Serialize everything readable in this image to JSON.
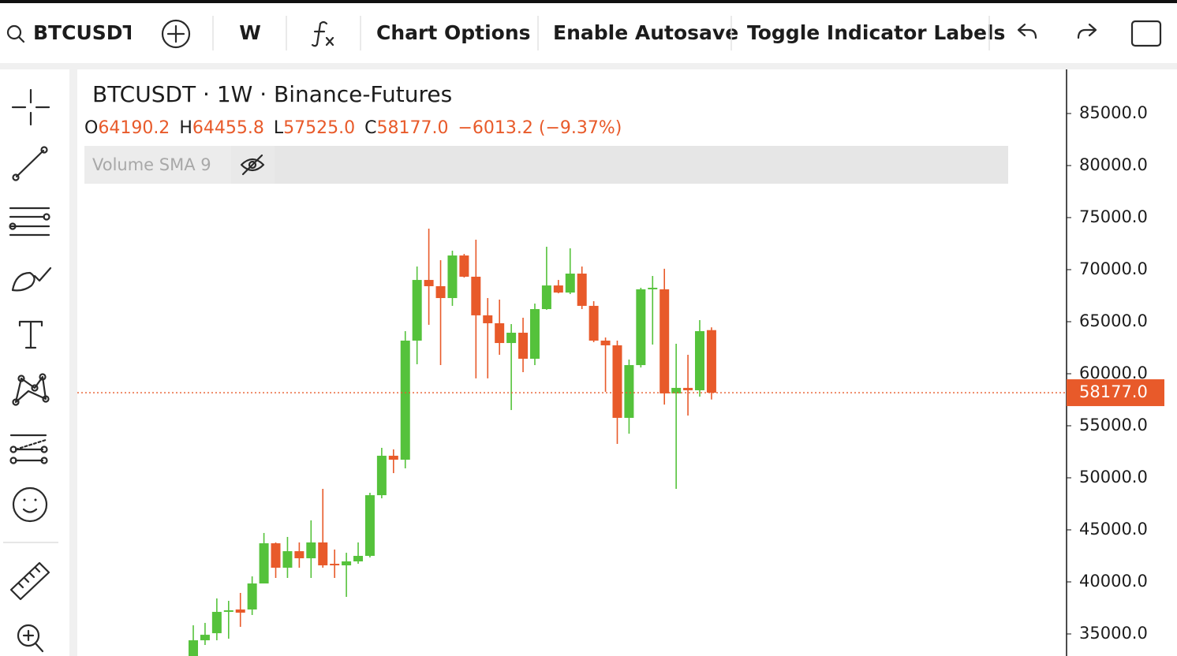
{
  "toolbar": {
    "symbol": "BTCUSDT",
    "interval": "W",
    "buttons": [
      "Chart Options",
      "Enable Autosave",
      "Toggle Indicator Labels"
    ]
  },
  "chart_data": {
    "type": "candlestick",
    "title": "BTCUSDT · 1W · Binance-Futures",
    "legend": {
      "ohlc": [
        {
          "key": "O",
          "value": "64190.2"
        },
        {
          "key": "H",
          "value": "64455.8"
        },
        {
          "key": "L",
          "value": "57525.0"
        },
        {
          "key": "C",
          "value": "58177.0"
        }
      ],
      "change": "−6013.2 (−9.37%)"
    },
    "indicator": "Volume SMA 9",
    "open": [
      32650,
      34390,
      35070,
      37120,
      37350,
      37350,
      39850,
      43710,
      41360,
      42950,
      42270,
      43790,
      41740,
      41590,
      41970,
      42500,
      48330,
      52120,
      51740,
      63180,
      69010,
      68410,
      67270,
      71360,
      69320,
      65610,
      64850,
      62950,
      63940,
      61440,
      66210,
      68480,
      67800,
      69620,
      66520,
      63180,
      62730,
      55760,
      60830,
      68110,
      68110,
      58110,
      58640,
      58410,
      64190.2
    ],
    "high": [
      35830,
      36060,
      38410,
      38180,
      38940,
      40530,
      44700,
      43790,
      44320,
      43790,
      45910,
      48940,
      43110,
      42800,
      43790,
      48560,
      52880,
      52730,
      64090,
      70300,
      73940,
      70910,
      71820,
      71510,
      72880,
      67270,
      67120,
      64770,
      65380,
      66740,
      72200,
      69010,
      72050,
      70300,
      66970,
      63480,
      63180,
      61360,
      68260,
      69390,
      70080,
      62880,
      61820,
      65150,
      64455.8
    ],
    "low": [
      32270,
      33940,
      34390,
      34540,
      35680,
      36820,
      39850,
      40380,
      40380,
      41360,
      40380,
      41360,
      40380,
      38560,
      41740,
      42350,
      48030,
      50450,
      50910,
      60910,
      64700,
      60830,
      66520,
      69240,
      59550,
      59550,
      61820,
      56510,
      60150,
      60830,
      66140,
      67730,
      67650,
      66210,
      63030,
      58260,
      53260,
      54240,
      60600,
      62800,
      57040,
      48940,
      55980,
      57800,
      57525
    ],
    "close": [
      34390,
      34920,
      37120,
      37270,
      37040,
      39850,
      43710,
      41360,
      42950,
      42270,
      43790,
      41590,
      41590,
      41970,
      42500,
      48330,
      52120,
      51740,
      63180,
      69010,
      68410,
      67270,
      71360,
      69320,
      65610,
      64850,
      62950,
      63940,
      61440,
      66210,
      68480,
      67800,
      69620,
      66520,
      63180,
      62730,
      55760,
      60830,
      68110,
      68260,
      58110,
      58640,
      58410,
      64090,
      58177
    ],
    "up_color": "#55c23b",
    "down_color": "#e85a2a",
    "ylim": [
      32880,
      89240
    ],
    "yticks": [
      {
        "value": 85000,
        "label": "85000.0"
      },
      {
        "value": 80000,
        "label": "80000.0"
      },
      {
        "value": 75000,
        "label": "75000.0"
      },
      {
        "value": 70000,
        "label": "70000.0"
      },
      {
        "value": 65000,
        "label": "65000.0"
      },
      {
        "value": 60000,
        "label": "60000.0"
      },
      {
        "value": 55000,
        "label": "55000.0"
      },
      {
        "value": 50000,
        "label": "50000.0"
      },
      {
        "value": 45000,
        "label": "45000.0"
      },
      {
        "value": 40000,
        "label": "40000.0"
      },
      {
        "value": 35000,
        "label": "35000.0"
      }
    ],
    "last_price": {
      "value": 58177,
      "label": "58177.0"
    }
  }
}
